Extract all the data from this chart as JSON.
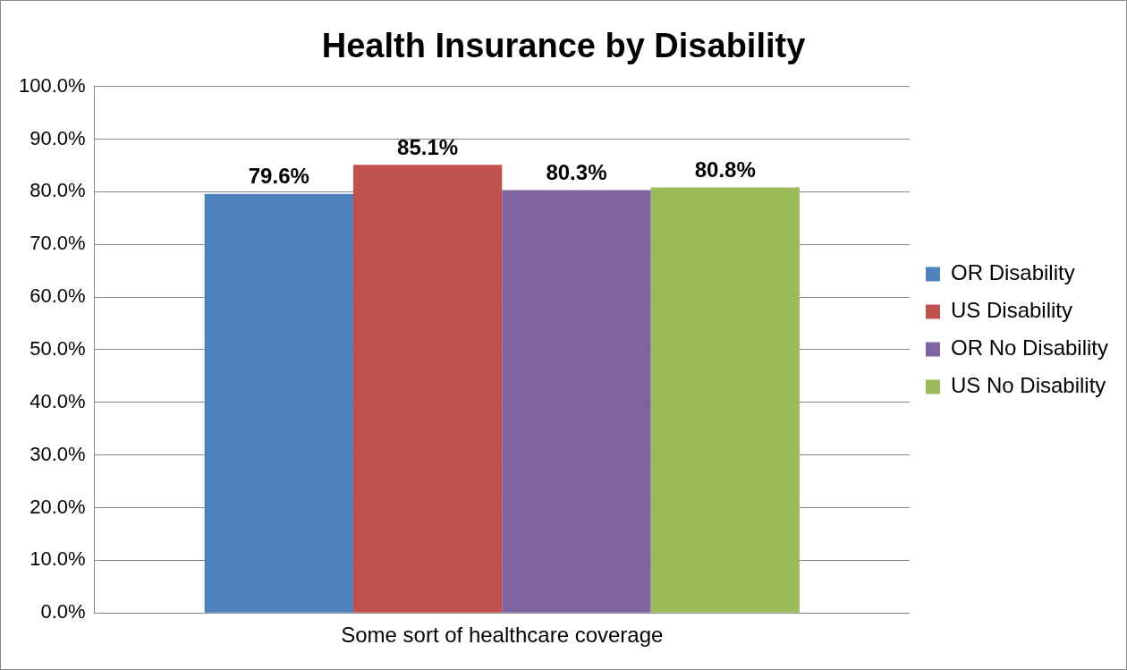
{
  "chart_data": {
    "type": "bar",
    "title": "Health Insurance by Disability",
    "categories": [
      "Some sort of healthcare coverage"
    ],
    "series": [
      {
        "name": "OR Disability",
        "color": "#4f81bd",
        "values": [
          79.6
        ],
        "value_labels": [
          "79.6%"
        ]
      },
      {
        "name": "US Disability",
        "color": "#c0504d",
        "values": [
          85.1
        ],
        "value_labels": [
          "85.1%"
        ]
      },
      {
        "name": "OR No Disability",
        "color": "#8064a2",
        "values": [
          80.3
        ],
        "value_labels": [
          "80.3%"
        ]
      },
      {
        "name": "US No Disability",
        "color": "#9bbb59",
        "values": [
          80.8
        ],
        "value_labels": [
          "80.8%"
        ]
      }
    ],
    "ylim": [
      0,
      100
    ],
    "yticks": [
      {
        "value": 0,
        "label": "0.0%"
      },
      {
        "value": 10,
        "label": "10.0%"
      },
      {
        "value": 20,
        "label": "20.0%"
      },
      {
        "value": 30,
        "label": "30.0%"
      },
      {
        "value": 40,
        "label": "40.0%"
      },
      {
        "value": 50,
        "label": "50.0%"
      },
      {
        "value": 60,
        "label": "60.0%"
      },
      {
        "value": 70,
        "label": "70.0%"
      },
      {
        "value": 80,
        "label": "80.0%"
      },
      {
        "value": 90,
        "label": "90.0%"
      },
      {
        "value": 100,
        "label": "100.0%"
      }
    ],
    "grid": "y",
    "legend": "right"
  }
}
